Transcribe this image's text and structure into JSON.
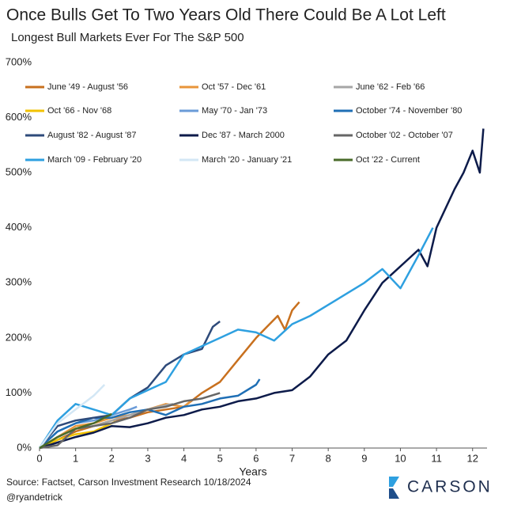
{
  "chart_data": {
    "type": "line",
    "title": "Once Bulls Get To Two Years Old There Could Be A Lot Left",
    "subtitle": "Longest Bull Markets Ever For The S&P 500",
    "x_label": "Years",
    "source": "Source: Factset, Carson Investment Research 10/18/2024",
    "handle": "@ryandetrick",
    "brand": "CARSON",
    "xlim": [
      0,
      12.4
    ],
    "xticks": [
      0,
      1,
      2,
      3,
      4,
      5,
      6,
      7,
      8,
      9,
      10,
      11,
      12
    ],
    "ylim": [
      0,
      700
    ],
    "yticks": [
      {
        "value": 0,
        "label": "0%"
      },
      {
        "value": 100,
        "label": "100%"
      },
      {
        "value": 200,
        "label": "200%"
      },
      {
        "value": 300,
        "label": "300%"
      },
      {
        "value": 400,
        "label": "400%"
      },
      {
        "value": 500,
        "label": "500%"
      },
      {
        "value": 600,
        "label": "600%"
      },
      {
        "value": 700,
        "label": "700%"
      }
    ],
    "grid": false,
    "series": [
      {
        "name": "June '49 - August '56",
        "color": "#c8701e",
        "x": [
          0,
          0.5,
          1,
          1.5,
          2,
          2.5,
          3,
          3.5,
          4,
          4.5,
          5,
          5.5,
          6,
          6.3,
          6.6,
          6.8,
          7,
          7.2
        ],
        "values": [
          0,
          15,
          30,
          40,
          50,
          55,
          65,
          70,
          75,
          100,
          120,
          160,
          200,
          220,
          240,
          215,
          250,
          265
        ]
      },
      {
        "name": "Oct '57 - Dec '61",
        "color": "#e8953a",
        "x": [
          0,
          0.5,
          1,
          1.5,
          2,
          2.5,
          3,
          3.5,
          4,
          4.2
        ],
        "values": [
          0,
          20,
          40,
          45,
          55,
          60,
          70,
          80,
          75,
          86
        ]
      },
      {
        "name": "June '62 - Feb '66",
        "color": "#a6a6a6",
        "x": [
          0,
          0.5,
          1,
          1.5,
          2,
          2.5,
          3,
          3.5,
          3.7
        ],
        "values": [
          0,
          20,
          35,
          40,
          50,
          60,
          70,
          78,
          80
        ]
      },
      {
        "name": "Oct '66 - Nov '68",
        "color": "#f2c200",
        "x": [
          0,
          0.5,
          1,
          1.5,
          2,
          2.1
        ],
        "values": [
          0,
          15,
          25,
          30,
          45,
          48
        ]
      },
      {
        "name": "May '70 - Jan '73",
        "color": "#6a9bd8",
        "x": [
          0,
          0.5,
          1,
          1.5,
          2,
          2.5,
          2.7
        ],
        "values": [
          0,
          30,
          45,
          50,
          60,
          70,
          75
        ]
      },
      {
        "name": "October '74 - November '80",
        "color": "#1f6fb5",
        "x": [
          0,
          0.5,
          1,
          1.5,
          2,
          2.5,
          3,
          3.5,
          4,
          4.5,
          5,
          5.5,
          6,
          6.1
        ],
        "values": [
          0,
          30,
          45,
          55,
          55,
          65,
          70,
          60,
          75,
          80,
          90,
          95,
          115,
          125
        ]
      },
      {
        "name": "August '82 - August '87",
        "color": "#2e4a7a",
        "x": [
          0,
          0.5,
          1,
          1.5,
          2,
          2.5,
          3,
          3.5,
          4,
          4.5,
          4.8,
          5
        ],
        "values": [
          0,
          40,
          50,
          55,
          60,
          90,
          110,
          150,
          170,
          180,
          220,
          230
        ]
      },
      {
        "name": "Dec '87 - March 2000",
        "color": "#0d1b4a",
        "x": [
          0,
          0.5,
          1,
          1.5,
          2,
          2.5,
          3,
          3.5,
          4,
          4.5,
          5,
          5.5,
          6,
          6.5,
          7,
          7.5,
          8,
          8.5,
          9,
          9.5,
          10,
          10.5,
          10.75,
          11,
          11.5,
          11.75,
          12,
          12.2,
          12.3
        ],
        "values": [
          0,
          10,
          20,
          28,
          40,
          38,
          45,
          55,
          60,
          70,
          75,
          85,
          90,
          100,
          105,
          130,
          170,
          195,
          250,
          300,
          330,
          360,
          330,
          400,
          470,
          500,
          540,
          500,
          580
        ]
      },
      {
        "name": "October '02 - October '07",
        "color": "#666666",
        "x": [
          0,
          0.5,
          1,
          1.5,
          2,
          2.5,
          3,
          3.5,
          4,
          4.5,
          5
        ],
        "values": [
          0,
          5,
          35,
          40,
          45,
          55,
          70,
          75,
          85,
          90,
          100
        ]
      },
      {
        "name": "March '09 - February '20",
        "color": "#2ea0e0",
        "x": [
          0,
          0.5,
          1,
          1.5,
          2,
          2.5,
          3,
          3.5,
          4,
          4.5,
          5,
          5.5,
          6,
          6.5,
          7,
          7.5,
          8,
          8.5,
          9,
          9.5,
          10,
          10.5,
          10.9
        ],
        "values": [
          0,
          50,
          80,
          70,
          60,
          90,
          105,
          120,
          170,
          185,
          200,
          215,
          210,
          195,
          225,
          240,
          260,
          280,
          300,
          325,
          290,
          350,
          400
        ]
      },
      {
        "name": "March '20 - January '21",
        "color": "#d3e7f5",
        "x": [
          0,
          0.5,
          1,
          1.5,
          1.8
        ],
        "values": [
          0,
          45,
          70,
          95,
          115
        ]
      },
      {
        "name": "Oct '22 - Current",
        "color": "#4a6b2a",
        "x": [
          0,
          0.5,
          1,
          1.5,
          2
        ],
        "values": [
          0,
          20,
          35,
          45,
          62
        ]
      }
    ]
  }
}
